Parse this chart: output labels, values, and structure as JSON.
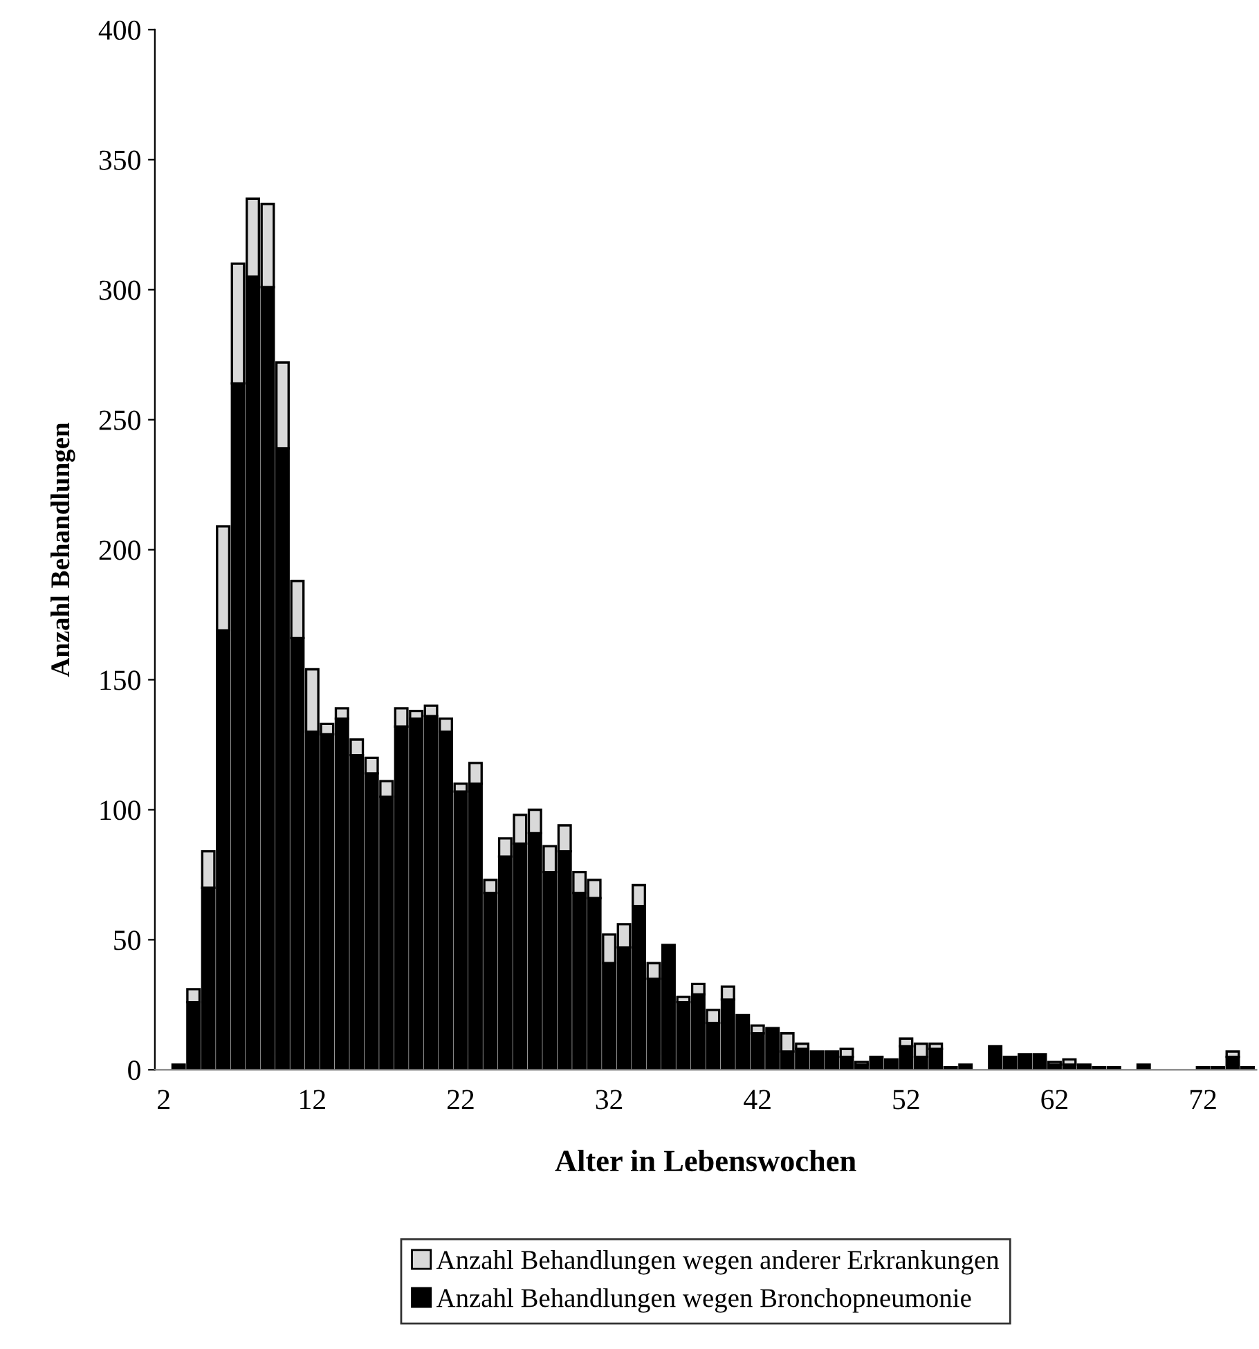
{
  "chart_data": {
    "type": "bar",
    "stacked": true,
    "xlabel": "Alter in Lebenswochen",
    "ylabel": "Anzahl Behandlungen",
    "categories": [
      "2",
      null,
      null,
      null,
      null,
      null,
      null,
      null,
      null,
      null,
      "12",
      null,
      null,
      null,
      null,
      null,
      null,
      null,
      null,
      null,
      "22",
      null,
      null,
      null,
      null,
      null,
      null,
      null,
      null,
      null,
      "32",
      null,
      null,
      null,
      null,
      null,
      null,
      null,
      null,
      null,
      "42",
      null,
      null,
      null,
      null,
      null,
      null,
      null,
      null,
      null,
      "52",
      null,
      null,
      null,
      null,
      null,
      null,
      null,
      null,
      null,
      "62",
      null,
      null,
      null,
      null,
      null,
      null,
      null,
      null,
      null,
      "72",
      null,
      null,
      null
    ],
    "series": [
      {
        "name": "Anzahl Behandlungen wegen Bronchopneumonie",
        "color": "#000000",
        "values": [
          0,
          2,
          26,
          70,
          169,
          264,
          305,
          301,
          239,
          166,
          130,
          129,
          135,
          121,
          114,
          105,
          132,
          135,
          136,
          130,
          107,
          110,
          68,
          82,
          87,
          91,
          76,
          84,
          68,
          66,
          41,
          47,
          63,
          35,
          48,
          26,
          29,
          18,
          27,
          21,
          14,
          16,
          7,
          8,
          7,
          7,
          5,
          2,
          5,
          4,
          9,
          5,
          8,
          1,
          2,
          0,
          9,
          5,
          6,
          6,
          2,
          2,
          2,
          1,
          1,
          0,
          2,
          0,
          0,
          0,
          1,
          1,
          5,
          1
        ]
      },
      {
        "name": "Anzahl Behandlungen wegen anderer Erkrankungen",
        "color": "#d9d9d9",
        "values": [
          0,
          0,
          5,
          14,
          40,
          46,
          30,
          32,
          33,
          22,
          24,
          4,
          4,
          6,
          6,
          6,
          7,
          3,
          4,
          5,
          3,
          8,
          5,
          7,
          11,
          9,
          10,
          10,
          8,
          7,
          11,
          9,
          8,
          6,
          0,
          2,
          4,
          5,
          5,
          0,
          3,
          0,
          7,
          2,
          0,
          0,
          3,
          1,
          0,
          0,
          3,
          5,
          2,
          0,
          0,
          0,
          0,
          0,
          0,
          0,
          1,
          2,
          0,
          0,
          0,
          0,
          0,
          0,
          0,
          0,
          0,
          0,
          2,
          0
        ]
      }
    ],
    "ylim": [
      0,
      400
    ],
    "yticks": [
      0,
      50,
      100,
      150,
      200,
      250,
      300,
      350,
      400
    ],
    "grid": false,
    "legend": "bottom"
  }
}
